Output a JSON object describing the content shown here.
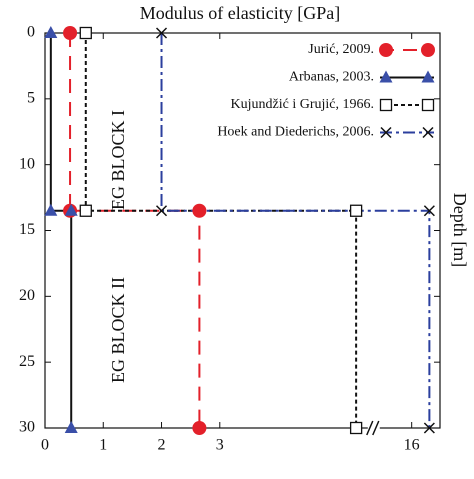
{
  "chart_data": {
    "type": "line",
    "title": "Modulus of elasticity [GPa]",
    "y_label": "Depth [m]",
    "annotations": [
      "EG BLOCK I",
      "EG BLOCK II"
    ],
    "xlim": [
      0,
      16.8
    ],
    "xbreak": [
      5.6,
      15
    ],
    "xticks": [
      0,
      1,
      2,
      3,
      16
    ],
    "ylim": [
      0,
      30
    ],
    "y_inverted": true,
    "yticks": [
      0,
      5,
      10,
      15,
      20,
      25,
      30
    ],
    "legend": "upper right",
    "series": [
      {
        "name": "Jurić, 2009.",
        "color": "#e3202a",
        "marker_color": "#e3202a",
        "marker": "circle",
        "dash": "14,9",
        "x": [
          0.43,
          0.43,
          2.65,
          2.65
        ],
        "y": [
          0,
          13.5,
          13.5,
          30
        ]
      },
      {
        "name": "Arbanas, 2003.",
        "color": "#111111",
        "marker_color": "#3a4fa8",
        "marker": "triangle",
        "dash": "none",
        "x": [
          0.1,
          0.1,
          0.45,
          0.45
        ],
        "y": [
          0,
          13.5,
          13.5,
          30
        ]
      },
      {
        "name": "Kujundžić i Grujić, 1966.",
        "color": "#111111",
        "marker_color": "#111111",
        "marker": "square",
        "dash": "4,3",
        "x": [
          0.7,
          0.7,
          5.34,
          5.34
        ],
        "y": [
          0,
          13.5,
          13.5,
          30
        ]
      },
      {
        "name": "Hoek and Diederichs, 2006.",
        "color": "#2b3f9e",
        "marker_color": "#111111",
        "marker": "x",
        "dash": "12,4,3,4",
        "x": [
          2,
          2,
          16.5,
          16.5
        ],
        "y": [
          0,
          13.5,
          13.5,
          30
        ]
      }
    ]
  }
}
